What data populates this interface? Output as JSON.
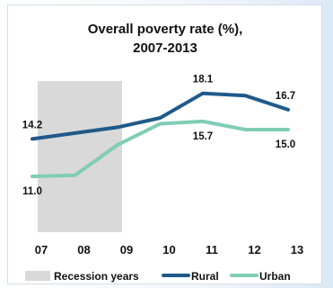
{
  "chart_data": {
    "type": "line",
    "title": "Overall poverty rate (%),",
    "subtitle": "2007-2013",
    "categories": [
      "07",
      "08",
      "09",
      "10",
      "11",
      "12",
      "13"
    ],
    "series": [
      {
        "name": "Rural",
        "color": "#1f5a8a",
        "values": [
          14.2,
          14.7,
          15.2,
          16.0,
          18.1,
          17.9,
          16.7
        ]
      },
      {
        "name": "Urban",
        "color": "#7fcdb4",
        "values": [
          11.0,
          11.1,
          13.7,
          15.5,
          15.7,
          15.0,
          15.0
        ]
      }
    ],
    "data_labels": [
      {
        "series": 0,
        "index": 0,
        "text": "14.2"
      },
      {
        "series": 0,
        "index": 4,
        "text": "18.1"
      },
      {
        "series": 0,
        "index": 6,
        "text": "16.7"
      },
      {
        "series": 1,
        "index": 0,
        "text": "11.0"
      },
      {
        "series": 1,
        "index": 4,
        "text": "15.7"
      },
      {
        "series": 1,
        "index": 6,
        "text": "15.0"
      }
    ],
    "recession": {
      "label": "Recession years",
      "from": "07",
      "to": "09",
      "color": "#d9d9d9"
    },
    "legend": {
      "position": "bottom",
      "items": [
        "Recession years",
        "Rural",
        "Urban"
      ]
    },
    "ylim": [
      7,
      21
    ],
    "grid": false
  }
}
